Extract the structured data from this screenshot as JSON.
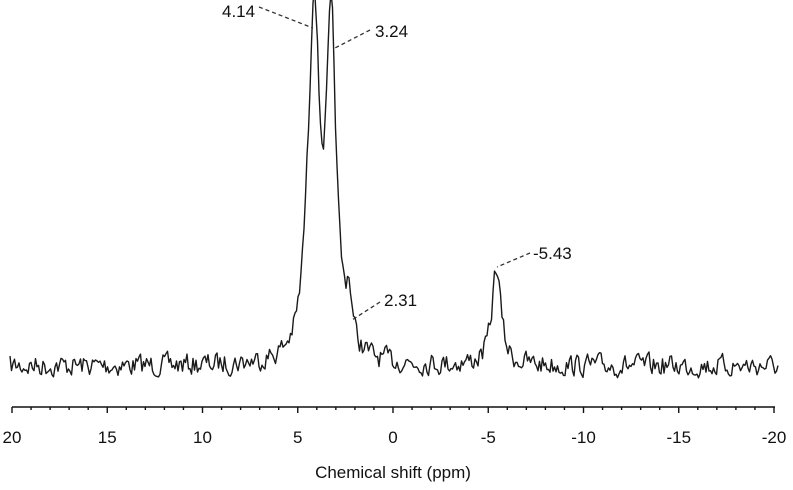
{
  "chart_data": {
    "type": "line",
    "title": "",
    "xlabel": "Chemical shift (ppm)",
    "ylabel": "",
    "xlim": [
      20,
      -20
    ],
    "x_reversed": true,
    "grid": false,
    "legend": null,
    "x_ticks": [
      20,
      15,
      10,
      5,
      0,
      -5,
      -10,
      -15,
      -20
    ],
    "x_tick_labels": [
      "20",
      "15",
      "10",
      "5",
      "0",
      "-5",
      "-10",
      "-15",
      "-20"
    ],
    "peaks": [
      {
        "ppm": 4.14,
        "label": "4.14",
        "relative_intensity": 1.0
      },
      {
        "ppm": 3.24,
        "label": "3.24",
        "relative_intensity": 0.94
      },
      {
        "ppm": 2.31,
        "label": "2.31",
        "relative_intensity": 0.14
      },
      {
        "ppm": -5.43,
        "label": "-5.43",
        "relative_intensity": 0.29
      }
    ],
    "series": [
      {
        "name": "NMR spectrum",
        "color": "#1a1a1a"
      }
    ]
  },
  "axis": {
    "title": "Chemical shift (ppm)",
    "ticks": [
      "20",
      "15",
      "10",
      "5",
      "0",
      "-5",
      "-10",
      "-15",
      "-20"
    ]
  },
  "annotations": {
    "p1": "4.14",
    "p2": "3.24",
    "p3": "2.31",
    "p4": "-5.43"
  }
}
